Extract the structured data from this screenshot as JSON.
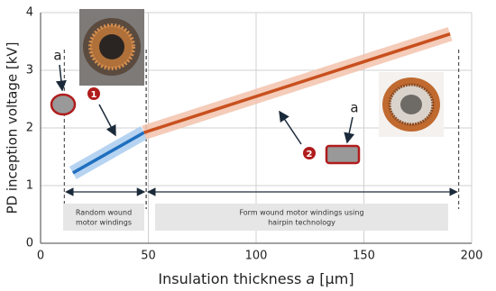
{
  "chart_data": {
    "type": "line",
    "y_label": "PD inception voltage [kV]",
    "x_label": [
      "Insulation thickness ",
      "a",
      " [μm]"
    ],
    "xlim": [
      0,
      200
    ],
    "xticks": [
      0,
      50,
      100,
      150,
      200
    ],
    "ylim": [
      0,
      4
    ],
    "yticks": [
      0,
      1,
      2,
      3,
      4
    ],
    "grid": true,
    "series": [
      {
        "color": "#1f6fbf",
        "band_color": "#a9cdee",
        "x": [
          15,
          48
        ],
        "values": [
          1.22,
          1.92
        ]
      },
      {
        "color": "#c8501e",
        "band_color": "#f2c3ad",
        "x": [
          48,
          190
        ],
        "values": [
          1.92,
          3.63
        ]
      }
    ],
    "regions": [
      {
        "label": [
          "Random wound",
          "motor windings"
        ],
        "x": [
          11,
          49
        ]
      },
      {
        "label": [
          "Form wound motor windings using",
          "hairpin technology"
        ],
        "x": [
          49,
          194
        ]
      }
    ],
    "annotations": {
      "a1": "a",
      "a2": "a",
      "n1": "1",
      "n2": "2"
    }
  }
}
